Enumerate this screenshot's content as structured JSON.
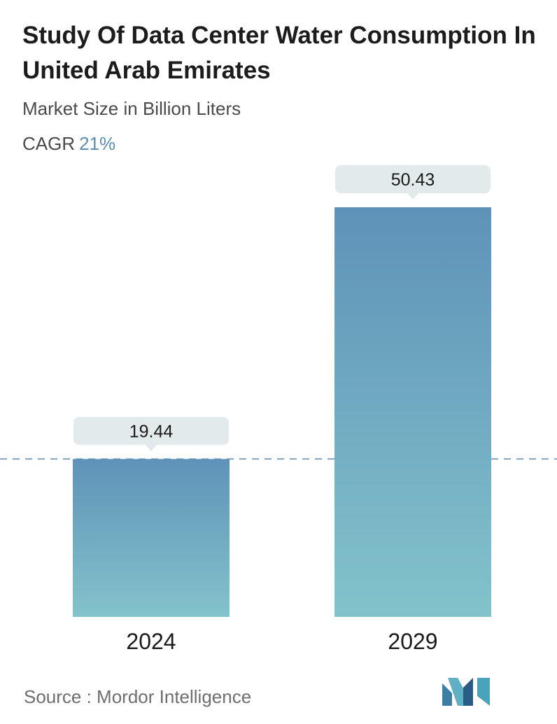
{
  "header": {
    "title": "Study Of Data Center Water Consumption In United Arab Emirates",
    "subtitle": "Market Size in Billion Liters",
    "cagr_label": "CAGR",
    "cagr_value": "21%"
  },
  "footer": {
    "source": "Source :  Mordor Intelligence"
  },
  "colors": {
    "bar_top": "#5f92b8",
    "bar_bottom": "#82c3cb",
    "label_bg": "#e2eaec",
    "dashed_line": "#5b88a8",
    "accent": "#5b8fb3"
  },
  "chart_data": {
    "type": "bar",
    "title": "Study Of Data Center Water Consumption In United Arab Emirates",
    "subtitle": "Market Size in Billion Liters",
    "categories": [
      "2024",
      "2029"
    ],
    "values": [
      19.44,
      50.43
    ],
    "value_labels": [
      "19.44",
      "50.43"
    ],
    "reference_line": 19.44,
    "ylim": [
      0,
      50.43
    ],
    "grid": false,
    "legend": "none"
  }
}
